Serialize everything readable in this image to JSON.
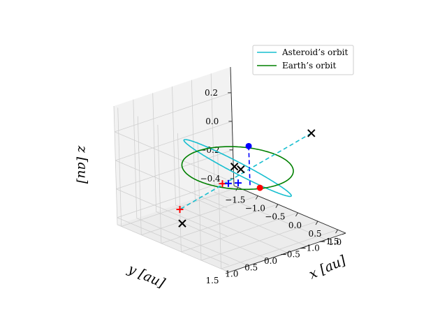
{
  "chart_data": {
    "type": "line",
    "projection": "3d",
    "grid": true,
    "legend_placement": "upper-right",
    "axes": {
      "x": {
        "label": "x [au]",
        "range": [
          -1.6,
          1.2
        ],
        "ticks": [
          -1.5,
          -1.0,
          -0.5,
          0.0,
          0.5,
          1.0
        ],
        "tick_labels": [
          "−1.5",
          "−1.0",
          "−0.5",
          "0.0",
          "0.5",
          "1.0"
        ]
      },
      "y": {
        "label": "y [au]",
        "range": [
          -1.5,
          1.5
        ],
        "ticks": [
          -1.5,
          -1.0,
          -0.5,
          0.0,
          0.5,
          1.0,
          1.5
        ],
        "tick_labels": [
          "−1.5",
          "−1.0",
          "−0.5",
          "0.0",
          "0.5",
          "1.0",
          "1.5"
        ]
      },
      "z": {
        "label": "z [au]",
        "range": [
          -0.45,
          0.38
        ],
        "ticks": [
          -0.4,
          -0.2,
          0.0,
          0.2
        ],
        "tick_labels": [
          "−0.4",
          "−0.2",
          "0.0",
          "0.2"
        ]
      }
    },
    "series": [
      {
        "name": "Asteroid’s orbit",
        "color": "#17becf",
        "style": "solid",
        "kind": "ellipse",
        "center": [
          0.0,
          0.0,
          0.0
        ],
        "semi_axis_u": [
          -0.05,
          1.2,
          0.3
        ],
        "semi_axis_v": [
          0.6,
          0.1,
          0.05
        ]
      },
      {
        "name": "Earth’s orbit",
        "color": "#008000",
        "style": "solid",
        "kind": "ellipse",
        "center": [
          0.0,
          0.0,
          0.0
        ],
        "semi_axis_u": [
          1.0,
          0.0,
          0.0
        ],
        "semi_axis_v": [
          0.0,
          1.0,
          0.0
        ]
      }
    ],
    "lines": [
      {
        "role": "blue-dashed",
        "color": "#0000ff",
        "from": [
          -0.6,
          -0.9,
          0.0
        ],
        "to": [
          0.75,
          0.45,
          0.0
        ]
      },
      {
        "role": "cyan-dashed",
        "color": "#17becf",
        "from": [
          1.0,
          -0.9,
          0.28
        ],
        "to": [
          -0.7,
          0.8,
          -0.3
        ]
      }
    ],
    "markers": [
      {
        "type": "dot",
        "color": "#0000ff",
        "xyz": [
          -0.6,
          -0.9,
          0.0
        ]
      },
      {
        "type": "dot",
        "color": "#ff0000",
        "xyz": [
          0.9,
          0.35,
          0.0
        ]
      },
      {
        "type": "plus",
        "color": "#ff0000",
        "xyz": [
          0.35,
          0.75,
          0.0
        ]
      },
      {
        "type": "plus",
        "color": "#ff0000",
        "xyz": [
          -0.7,
          0.8,
          -0.3
        ]
      },
      {
        "type": "plus",
        "color": "#0000ff",
        "xyz": [
          0.55,
          0.8,
          0.03
        ]
      },
      {
        "type": "plus",
        "color": "#0000ff",
        "xyz": [
          0.5,
          0.5,
          0.0
        ]
      },
      {
        "type": "x",
        "color": "#000000",
        "xyz": [
          1.0,
          -0.9,
          0.28
        ]
      },
      {
        "type": "x",
        "color": "#000000",
        "xyz": [
          -0.08,
          0.0,
          0.0
        ]
      },
      {
        "type": "x",
        "color": "#000000",
        "xyz": [
          0.08,
          0.0,
          0.0
        ]
      },
      {
        "type": "x",
        "color": "#000000",
        "xyz": [
          -0.45,
          1.0,
          -0.35
        ]
      }
    ]
  }
}
